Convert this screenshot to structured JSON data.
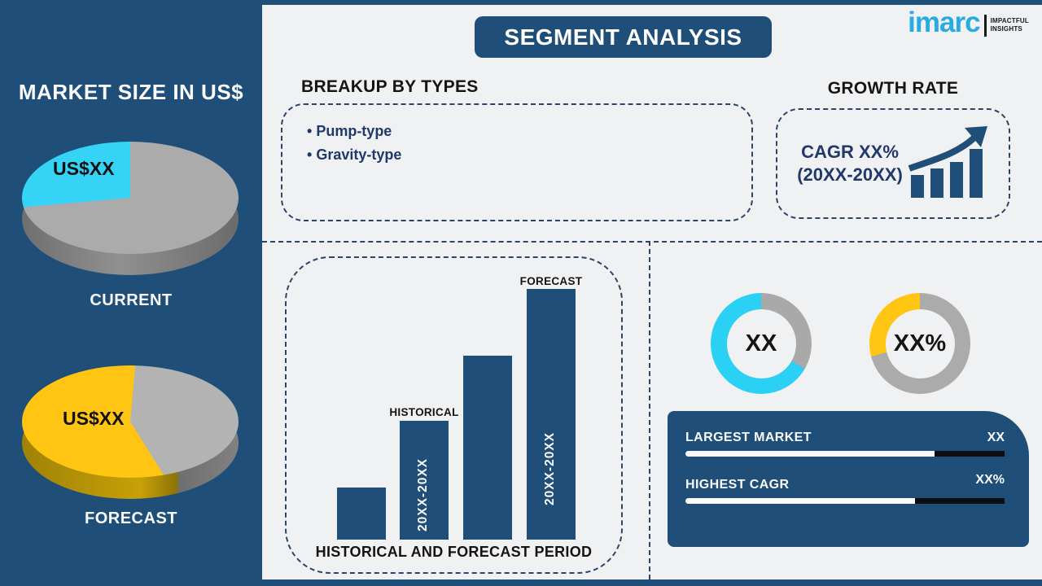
{
  "page": {
    "background": "#F0F1F2",
    "accent_navy": "#1F4E79"
  },
  "header": {
    "title": "SEGMENT ANALYSIS"
  },
  "logo": {
    "wordmark": "imarc",
    "tagline_line1": "IMPACTFUL",
    "tagline_line2": "INSIGHTS",
    "brand_color": "#29ABE2"
  },
  "sidebar": {
    "title": "MARKET SIZE IN US$"
  },
  "sections": {
    "breakup": {
      "title": "BREAKUP BY TYPES",
      "items": [
        "Pump-type",
        "Gravity-type"
      ]
    },
    "growth": {
      "title": "GROWTH RATE",
      "cagr_line1": "CAGR XX%",
      "cagr_line2": "(20XX-20XX)"
    }
  },
  "chart_data": [
    {
      "id": "pie-current",
      "type": "pie",
      "style": "3d",
      "label": "US$XX",
      "caption": "CURRENT",
      "segments": [
        {
          "name": "rest",
          "color": "#ABABAB",
          "start": 0,
          "end": 265
        },
        {
          "name": "highlight",
          "color": "#35D4F6",
          "start": 265,
          "end": 360
        }
      ]
    },
    {
      "id": "pie-forecast",
      "type": "pie",
      "style": "3d",
      "label": "US$XX",
      "caption": "FORECAST",
      "segments": [
        {
          "name": "highlight",
          "color": "#FFC512",
          "start": 0,
          "end": 5
        },
        {
          "name": "rest",
          "color": "#B3B3B3",
          "start": 5,
          "end": 148
        },
        {
          "name": "highlight",
          "color": "#FFC512",
          "start": 148,
          "end": 360
        }
      ]
    },
    {
      "id": "period-bars",
      "type": "bar",
      "title": "HISTORICAL AND FORECAST PERIOD",
      "categories": [
        "",
        "HISTORICAL",
        "",
        "FORECAST"
      ],
      "values_rel": [
        64,
        146,
        226,
        308
      ],
      "bar_labels": [
        "",
        "20XX-20XX",
        "",
        "20XX-20XX"
      ],
      "bar_color": "#1F4E79",
      "ylabel": "",
      "xlabel": "",
      "grid": false
    },
    {
      "id": "donut-largest-market",
      "type": "donut",
      "center_label": "XX",
      "segments": [
        {
          "name": "rest",
          "color": "#A9A9A9",
          "start": 0,
          "end": 120
        },
        {
          "name": "highlight",
          "color": "#2BD0F5",
          "start": 120,
          "end": 360
        }
      ]
    },
    {
      "id": "donut-highest-cagr",
      "type": "donut",
      "center_label": "XX%",
      "segments": [
        {
          "name": "rest",
          "color": "#ABABAB",
          "start": 0,
          "end": 255
        },
        {
          "name": "highlight",
          "color": "#FFC512",
          "start": 255,
          "end": 360
        }
      ]
    },
    {
      "id": "bar-largest-market",
      "type": "progress",
      "label": "LARGEST MARKET",
      "value_label": "XX",
      "fill_pct": 78
    },
    {
      "id": "bar-highest-cagr",
      "type": "progress",
      "label": "HIGHEST CAGR",
      "value_label": "XX%",
      "fill_pct": 72
    }
  ]
}
